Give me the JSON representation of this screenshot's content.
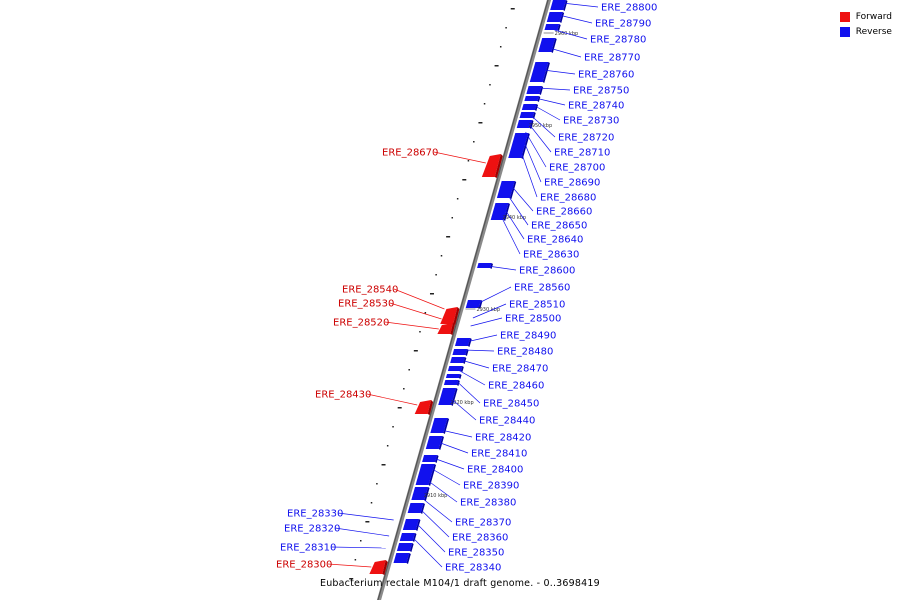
{
  "title": "Eubacterium rectale M104/1 draft genome. - 0..3698419",
  "legend": {
    "forward_label": "Forward",
    "reverse_label": "Reverse",
    "forward_color": "#ee1111",
    "reverse_color": "#1111ee"
  },
  "ticks": [
    "2960 kbp",
    "2950 kbp",
    "2940 kbp",
    "2930 kbp",
    "2920 kbp",
    "2910 kbp"
  ],
  "genes_reverse": [
    "ERE_28800",
    "ERE_28790",
    "ERE_28780",
    "ERE_28770",
    "ERE_28760",
    "ERE_28750",
    "ERE_28740",
    "ERE_28730",
    "ERE_28720",
    "ERE_28710",
    "ERE_28700",
    "ERE_28690",
    "ERE_28680",
    "ERE_28660",
    "ERE_28650",
    "ERE_28640",
    "ERE_28630",
    "ERE_28600",
    "ERE_28560",
    "ERE_28510",
    "ERE_28500",
    "ERE_28490",
    "ERE_28480",
    "ERE_28470",
    "ERE_28460",
    "ERE_28450",
    "ERE_28440",
    "ERE_28420",
    "ERE_28410",
    "ERE_28400",
    "ERE_28390",
    "ERE_28380",
    "ERE_28370",
    "ERE_28360",
    "ERE_28350",
    "ERE_28340",
    "ERE_28330",
    "ERE_28320",
    "ERE_28310"
  ],
  "genes_forward": [
    "ERE_28670",
    "ERE_28540",
    "ERE_28530",
    "ERE_28520",
    "ERE_28430",
    "ERE_28300"
  ]
}
